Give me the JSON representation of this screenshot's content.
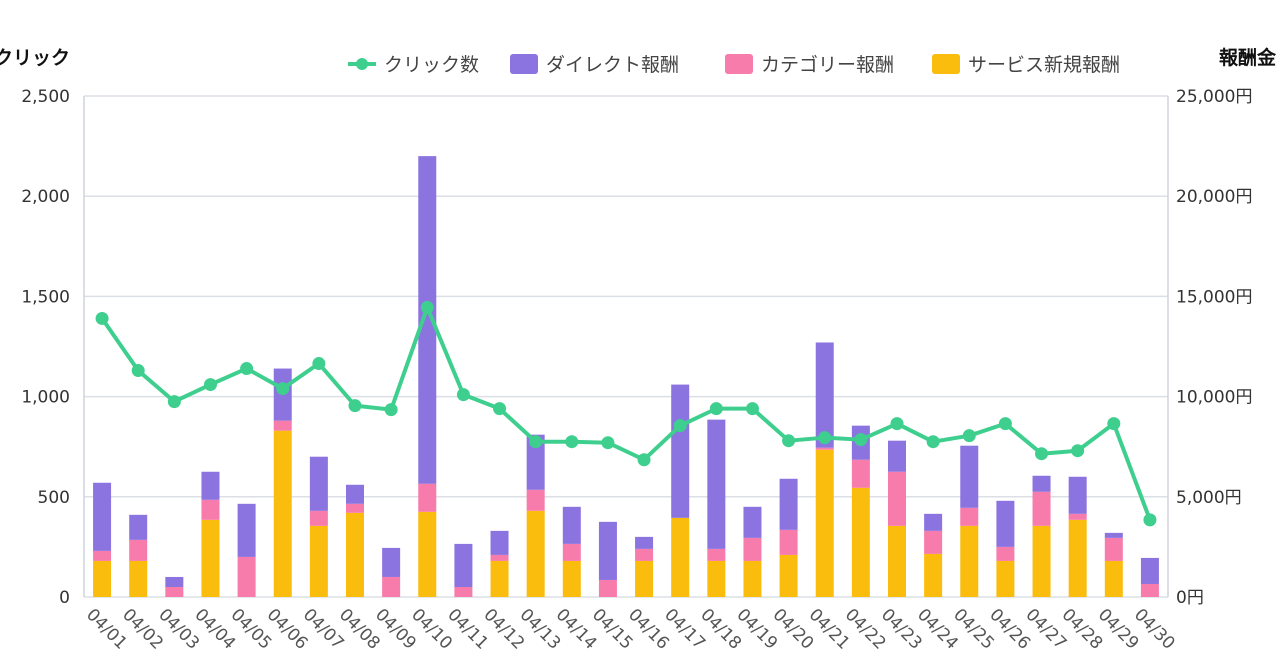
{
  "chart_data": {
    "type": "bar",
    "categories": [
      "04/01",
      "04/02",
      "04/03",
      "04/04",
      "04/05",
      "04/06",
      "04/07",
      "04/08",
      "04/09",
      "04/10",
      "04/11",
      "04/12",
      "04/13",
      "04/14",
      "04/15",
      "04/16",
      "04/17",
      "04/18",
      "04/19",
      "04/20",
      "04/21",
      "04/22",
      "04/23",
      "04/24",
      "04/25",
      "04/26",
      "04/27",
      "04/28",
      "04/29",
      "04/30"
    ],
    "left_axis": {
      "label": "クリック",
      "ylim": [
        0,
        2500
      ],
      "ticks": [
        "0",
        "500",
        "1,000",
        "1,500",
        "2,000",
        "2,500"
      ],
      "tick_values": [
        0,
        500,
        1000,
        1500,
        2000,
        2500
      ]
    },
    "right_axis": {
      "label": "報酬金",
      "ylim": [
        0,
        25000
      ],
      "ticks": [
        "0円",
        "5,000円",
        "10,000円",
        "15,000円",
        "20,000円",
        "25,000円"
      ],
      "tick_values": [
        0,
        5000,
        10000,
        15000,
        20000,
        25000
      ]
    },
    "legend_position": "top-right",
    "grid": true,
    "stacked": true,
    "series": [
      {
        "name": "サービス新規報酬",
        "kind": "bar",
        "axis": "right",
        "color": "#fbbd0d",
        "values": [
          1800,
          1800,
          0,
          3850,
          0,
          8300,
          3550,
          4200,
          0,
          4250,
          0,
          1800,
          4300,
          1800,
          0,
          1800,
          3950,
          1800,
          1800,
          2100,
          7350,
          5450,
          3550,
          2150,
          3550,
          1800,
          3550,
          3850,
          1800,
          0
        ]
      },
      {
        "name": "カテゴリー報酬",
        "kind": "bar",
        "axis": "right",
        "color": "#f77bab",
        "values": [
          500,
          1050,
          500,
          1000,
          2000,
          500,
          750,
          450,
          1000,
          1400,
          500,
          300,
          1050,
          850,
          850,
          600,
          0,
          600,
          1150,
          1250,
          100,
          1400,
          2700,
          1150,
          900,
          700,
          1700,
          300,
          1150,
          650
        ]
      },
      {
        "name": "ダイレクト報酬",
        "kind": "bar",
        "axis": "right",
        "color": "#8b73e0",
        "values": [
          3400,
          1250,
          500,
          1400,
          2650,
          2600,
          2700,
          950,
          1450,
          16350,
          2150,
          1200,
          2750,
          1850,
          2900,
          600,
          6650,
          6450,
          1550,
          2550,
          5250,
          1700,
          1550,
          850,
          3100,
          2300,
          800,
          1850,
          250,
          1300
        ]
      },
      {
        "name": "クリック数",
        "kind": "line",
        "axis": "left",
        "color": "#3ecf8e",
        "values": [
          1390,
          1130,
          975,
          1060,
          1140,
          1040,
          1165,
          955,
          935,
          1445,
          1010,
          940,
          775,
          775,
          770,
          685,
          855,
          940,
          940,
          780,
          795,
          785,
          865,
          775,
          805,
          865,
          715,
          730,
          865,
          385
        ]
      }
    ]
  }
}
